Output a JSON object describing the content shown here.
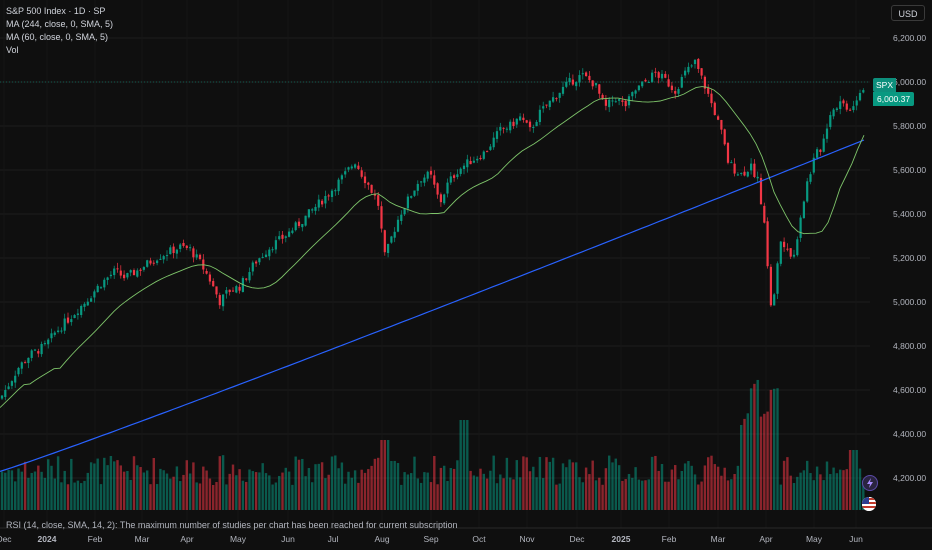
{
  "legend": {
    "title": "S&P 500 Index · 1D · SP",
    "ma1": "MA (244, close, 0, SMA, 5)",
    "ma2": "MA (60, close, 0, SMA, 5)",
    "vol": "Vol"
  },
  "currency_label": "USD",
  "last_price": {
    "symbol": "SPX",
    "value": "6,000.37"
  },
  "rsi_message": "RSI (14, close, SMA, 14, 2): The maximum number of studies per chart has been reached for current subscription",
  "colors": {
    "up": "#089981",
    "down": "#f23645",
    "ma244": "#2962ff",
    "ma60": "#7ec46a",
    "grid": "#1e1e1e",
    "text": "#b2b5be"
  },
  "icons": [
    "lightning-icon",
    "us-flag-icon"
  ],
  "chart_data": {
    "type": "candlestick",
    "y_ticks": [
      "6,200.00",
      "6,000.00",
      "5,800.00",
      "5,600.00",
      "5,400.00",
      "5,200.00",
      "5,000.00",
      "4,800.00",
      "4,600.00",
      "4,400.00",
      "4,200.00"
    ],
    "y_values": [
      6200,
      6000,
      5800,
      5600,
      5400,
      5200,
      5000,
      4800,
      4600,
      4400,
      4200
    ],
    "x_labels": [
      "Dec",
      "2024",
      "Feb",
      "Mar",
      "Apr",
      "May",
      "Jun",
      "Jul",
      "Aug",
      "Sep",
      "Oct",
      "Nov",
      "Dec",
      "2025",
      "Feb",
      "Mar",
      "Apr",
      "May",
      "Jun"
    ],
    "price_path": [
      [
        0,
        4560
      ],
      [
        8,
        4620
      ],
      [
        18,
        4700
      ],
      [
        30,
        4760
      ],
      [
        45,
        4800
      ],
      [
        55,
        4860
      ],
      [
        70,
        4930
      ],
      [
        85,
        5000
      ],
      [
        100,
        5080
      ],
      [
        115,
        5140
      ],
      [
        125,
        5110
      ],
      [
        140,
        5150
      ],
      [
        155,
        5200
      ],
      [
        170,
        5230
      ],
      [
        180,
        5250
      ],
      [
        190,
        5240
      ],
      [
        200,
        5180
      ],
      [
        210,
        5100
      ],
      [
        220,
        5000
      ],
      [
        228,
        5050
      ],
      [
        240,
        5070
      ],
      [
        255,
        5180
      ],
      [
        270,
        5250
      ],
      [
        285,
        5300
      ],
      [
        300,
        5360
      ],
      [
        315,
        5430
      ],
      [
        330,
        5500
      ],
      [
        345,
        5580
      ],
      [
        355,
        5640
      ],
      [
        362,
        5580
      ],
      [
        370,
        5520
      ],
      [
        378,
        5450
      ],
      [
        385,
        5200
      ],
      [
        392,
        5300
      ],
      [
        400,
        5400
      ],
      [
        410,
        5480
      ],
      [
        420,
        5560
      ],
      [
        430,
        5580
      ],
      [
        440,
        5450
      ],
      [
        448,
        5540
      ],
      [
        458,
        5600
      ],
      [
        470,
        5640
      ],
      [
        485,
        5680
      ],
      [
        500,
        5780
      ],
      [
        510,
        5800
      ],
      [
        520,
        5840
      ],
      [
        530,
        5780
      ],
      [
        540,
        5860
      ],
      [
        548,
        5900
      ],
      [
        558,
        5950
      ],
      [
        570,
        6000
      ],
      [
        582,
        6030
      ],
      [
        595,
        5990
      ],
      [
        605,
        5880
      ],
      [
        615,
        5930
      ],
      [
        625,
        5890
      ],
      [
        635,
        5960
      ],
      [
        645,
        6000
      ],
      [
        655,
        6040
      ],
      [
        665,
        6010
      ],
      [
        675,
        5960
      ],
      [
        685,
        6040
      ],
      [
        695,
        6090
      ],
      [
        705,
        5980
      ],
      [
        715,
        5860
      ],
      [
        722,
        5760
      ],
      [
        728,
        5640
      ],
      [
        735,
        5600
      ],
      [
        742,
        5580
      ],
      [
        750,
        5620
      ],
      [
        758,
        5560
      ],
      [
        765,
        5320
      ],
      [
        772,
        4930
      ],
      [
        780,
        5280
      ],
      [
        787,
        5260
      ],
      [
        793,
        5180
      ],
      [
        800,
        5380
      ],
      [
        808,
        5560
      ],
      [
        815,
        5660
      ],
      [
        822,
        5710
      ],
      [
        830,
        5860
      ],
      [
        840,
        5910
      ],
      [
        850,
        5880
      ],
      [
        858,
        5940
      ],
      [
        866,
        6000
      ]
    ],
    "volume_levels": [
      0.2,
      0.25,
      0.22,
      0.3,
      0.35,
      0.28,
      0.32,
      0.4,
      0.9,
      0.3,
      0.35,
      0.5,
      0.7,
      1.0
    ],
    "ma244": {
      "start": 4230,
      "end": 5740,
      "note": "MA 244"
    },
    "ma60": {
      "note": "MA 60"
    }
  }
}
